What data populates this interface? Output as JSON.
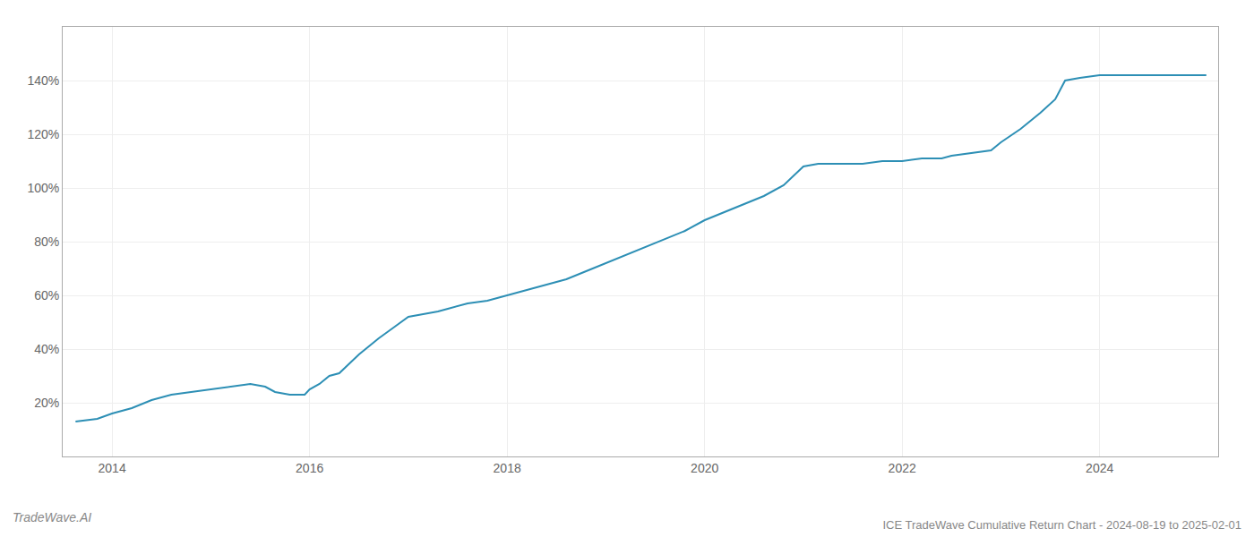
{
  "chart_data": {
    "type": "line",
    "title": "ICE TradeWave Cumulative Return Chart - 2024-08-19 to 2025-02-01",
    "annotations": [
      "TradeWave.AI"
    ],
    "color": "#2d8fb5",
    "grid": true,
    "x": [
      2013.63,
      2013.85,
      2014.0,
      2014.2,
      2014.4,
      2014.6,
      2014.8,
      2015.0,
      2015.2,
      2015.4,
      2015.55,
      2015.65,
      2015.8,
      2015.95,
      2016.0,
      2016.1,
      2016.2,
      2016.3,
      2016.5,
      2016.7,
      2016.85,
      2017.0,
      2017.15,
      2017.3,
      2017.4,
      2017.6,
      2017.8,
      2018.0,
      2018.2,
      2018.4,
      2018.6,
      2018.8,
      2019.0,
      2019.2,
      2019.4,
      2019.6,
      2019.8,
      2020.0,
      2020.2,
      2020.4,
      2020.6,
      2020.8,
      2021.0,
      2021.15,
      2021.3,
      2021.45,
      2021.6,
      2021.8,
      2021.95,
      2022.0,
      2022.2,
      2022.4,
      2022.5,
      2022.7,
      2022.9,
      2023.0,
      2023.2,
      2023.4,
      2023.55,
      2023.65,
      2023.8,
      2024.0,
      2024.1,
      2024.3,
      2024.6,
      2024.9,
      2025.08
    ],
    "values": [
      13,
      14,
      16,
      18,
      21,
      23,
      24,
      25,
      26,
      27,
      26,
      24,
      23,
      23,
      25,
      27,
      30,
      31,
      38,
      44,
      48,
      52,
      53,
      54,
      55,
      57,
      58,
      60,
      62,
      64,
      66,
      69,
      72,
      75,
      78,
      81,
      84,
      88,
      91,
      94,
      97,
      101,
      108,
      109,
      109,
      109,
      109,
      110,
      110,
      110,
      111,
      111,
      112,
      113,
      114,
      117,
      122,
      128,
      133,
      140,
      141,
      142,
      142,
      142,
      142,
      142,
      142
    ],
    "xlim": [
      2013.5,
      2025.2
    ],
    "ylim": [
      0,
      160
    ],
    "xticks": [
      2014,
      2016,
      2018,
      2020,
      2022,
      2024
    ],
    "yticks": [
      {
        "value": 20,
        "label": "20%"
      },
      {
        "value": 40,
        "label": "40%"
      },
      {
        "value": 60,
        "label": "60%"
      },
      {
        "value": 80,
        "label": "80%"
      },
      {
        "value": 100,
        "label": "100%"
      },
      {
        "value": 120,
        "label": "120%"
      },
      {
        "value": 140,
        "label": "140%"
      }
    ]
  }
}
